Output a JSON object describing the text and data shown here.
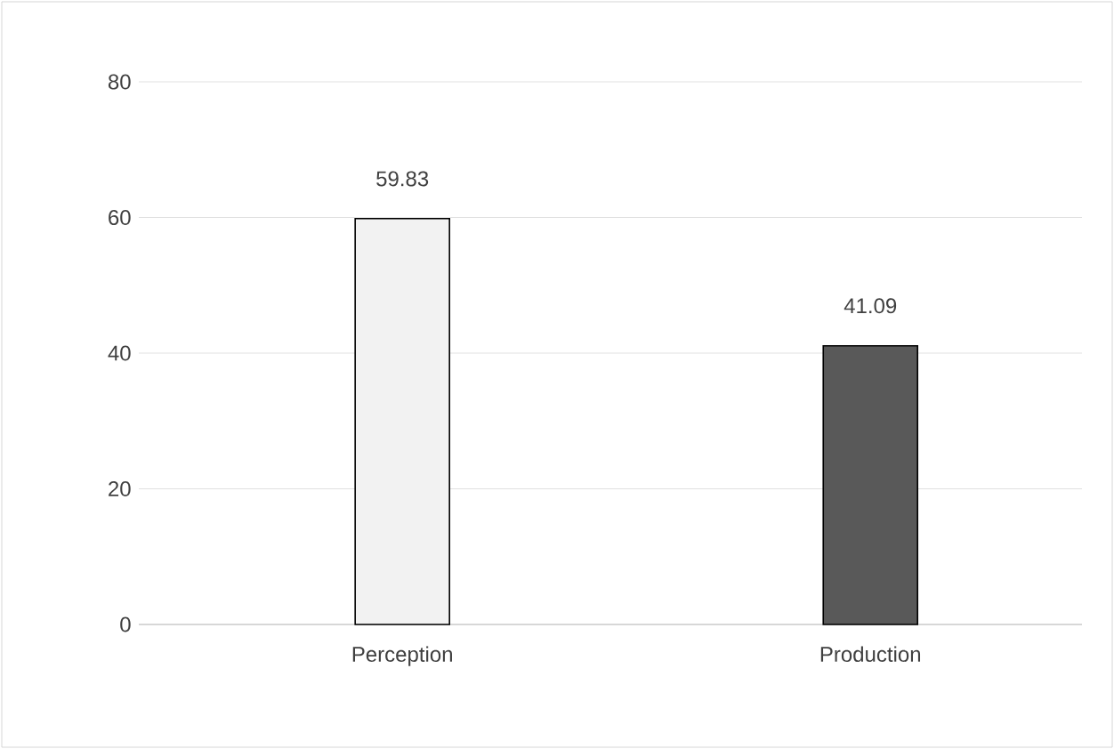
{
  "chart_data": {
    "type": "bar",
    "categories": [
      "Perception",
      "Production"
    ],
    "values": [
      59.83,
      41.09
    ],
    "colors": [
      "#f2f2f2",
      "#595959"
    ],
    "ylim": [
      0,
      80
    ],
    "yticks": [
      0,
      20,
      40,
      60,
      80
    ],
    "grid": "y",
    "data_labels": true
  }
}
